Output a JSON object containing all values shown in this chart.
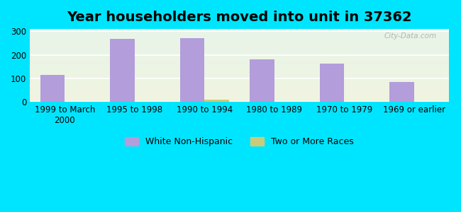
{
  "title": "Year householders moved into unit in 37362",
  "categories": [
    "1999 to March\n2000",
    "1995 to 1998",
    "1990 to 1994",
    "1980 to 1989",
    "1970 to 1979",
    "1969 or earlier"
  ],
  "white_non_hispanic": [
    113,
    268,
    272,
    180,
    163,
    84
  ],
  "two_or_more_races": [
    0,
    0,
    10,
    0,
    0,
    0
  ],
  "bar_color_white": "#b39ddb",
  "bar_color_two": "#c8cc7a",
  "background_outer": "#00e5ff",
  "background_inner_top": "#e8f5e9",
  "background_inner_bottom": "#f0f4e0",
  "ylim": [
    0,
    310
  ],
  "yticks": [
    0,
    100,
    200,
    300
  ],
  "title_fontsize": 14,
  "tick_fontsize": 8.5,
  "legend_fontsize": 9,
  "watermark_text": "City-Data.com"
}
